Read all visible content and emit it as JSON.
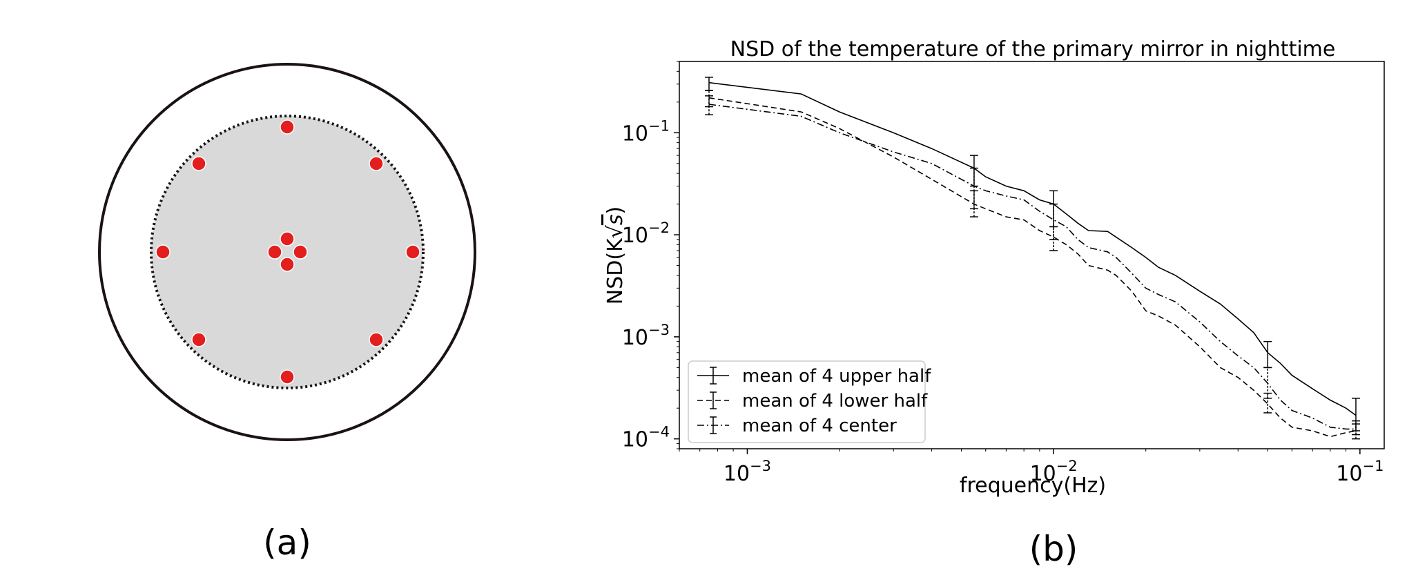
{
  "panels": {
    "a_label": "(a)",
    "b_label": "(b)"
  },
  "diagram": {
    "outer_color": "#1a1214",
    "disk_fill": "#d9d9d9",
    "sensor_color": "#e31e1e",
    "sensor_count": 12
  },
  "chart_data": {
    "type": "line",
    "title": "NSD of the temperature of the primary mirror in nighttime",
    "xlabel": "frequency(Hz)",
    "ylabel": "NSD(K√s)",
    "ylabel_main": "NSD(K",
    "ylabel_root": "s",
    "ylabel_close": ")",
    "x_scale": "log",
    "y_scale": "log",
    "xlim": [
      0.0006,
      0.12
    ],
    "ylim": [
      8e-05,
      0.5
    ],
    "x_ticks": [
      {
        "base": "10",
        "exp": "−3",
        "value": 0.001
      },
      {
        "base": "10",
        "exp": "−2",
        "value": 0.01
      },
      {
        "base": "10",
        "exp": "−1",
        "value": 0.1
      }
    ],
    "y_ticks": [
      {
        "base": "10",
        "exp": "−1",
        "value": 0.1
      },
      {
        "base": "10",
        "exp": "−2",
        "value": 0.01
      },
      {
        "base": "10",
        "exp": "−3",
        "value": 0.001
      },
      {
        "base": "10",
        "exp": "−4",
        "value": 0.0001
      }
    ],
    "legend_position": "lower-left",
    "grid": false,
    "series": [
      {
        "name": "mean of 4 upper half",
        "dash": "solid",
        "points": [
          [
            0.00075,
            0.31
          ],
          [
            0.0015,
            0.24
          ],
          [
            0.002,
            0.16
          ],
          [
            0.003,
            0.1
          ],
          [
            0.004,
            0.07
          ],
          [
            0.0055,
            0.045
          ],
          [
            0.006,
            0.037
          ],
          [
            0.007,
            0.03
          ],
          [
            0.008,
            0.027
          ],
          [
            0.009,
            0.022
          ],
          [
            0.01,
            0.02
          ],
          [
            0.011,
            0.016
          ],
          [
            0.012,
            0.013
          ],
          [
            0.013,
            0.011
          ],
          [
            0.015,
            0.0108
          ],
          [
            0.016,
            0.0095
          ],
          [
            0.018,
            0.0075
          ],
          [
            0.02,
            0.006
          ],
          [
            0.022,
            0.0048
          ],
          [
            0.025,
            0.004
          ],
          [
            0.03,
            0.0028
          ],
          [
            0.035,
            0.0021
          ],
          [
            0.04,
            0.0015
          ],
          [
            0.045,
            0.0011
          ],
          [
            0.05,
            0.0007
          ],
          [
            0.055,
            0.00055
          ],
          [
            0.06,
            0.00042
          ],
          [
            0.07,
            0.00031
          ],
          [
            0.08,
            0.00024
          ],
          [
            0.09,
            0.0002
          ],
          [
            0.097,
            0.00017
          ]
        ],
        "errorbars": [
          {
            "x": 0.00075,
            "y": 0.31,
            "lo": 0.26,
            "hi": 0.35
          },
          {
            "x": 0.0055,
            "y": 0.045,
            "lo": 0.03,
            "hi": 0.06
          },
          {
            "x": 0.01,
            "y": 0.02,
            "lo": 0.012,
            "hi": 0.027
          },
          {
            "x": 0.05,
            "y": 0.0007,
            "lo": 0.0005,
            "hi": 0.0009
          },
          {
            "x": 0.097,
            "y": 0.00017,
            "lo": 0.00012,
            "hi": 0.00025
          }
        ]
      },
      {
        "name": "mean of 4 lower half",
        "dash": "dashed",
        "points": [
          [
            0.00075,
            0.22
          ],
          [
            0.0015,
            0.16
          ],
          [
            0.002,
            0.11
          ],
          [
            0.003,
            0.058
          ],
          [
            0.004,
            0.035
          ],
          [
            0.0055,
            0.02
          ],
          [
            0.006,
            0.018
          ],
          [
            0.007,
            0.015
          ],
          [
            0.008,
            0.014
          ],
          [
            0.009,
            0.011
          ],
          [
            0.01,
            0.0095
          ],
          [
            0.011,
            0.008
          ],
          [
            0.012,
            0.0065
          ],
          [
            0.013,
            0.005
          ],
          [
            0.015,
            0.0045
          ],
          [
            0.016,
            0.004
          ],
          [
            0.018,
            0.0028
          ],
          [
            0.02,
            0.0018
          ],
          [
            0.022,
            0.0016
          ],
          [
            0.025,
            0.0013
          ],
          [
            0.03,
            0.0008
          ],
          [
            0.035,
            0.0005
          ],
          [
            0.04,
            0.0004
          ],
          [
            0.045,
            0.0003
          ],
          [
            0.05,
            0.00022
          ],
          [
            0.055,
            0.00016
          ],
          [
            0.06,
            0.00013
          ],
          [
            0.07,
            0.00012
          ],
          [
            0.08,
            0.000105
          ],
          [
            0.09,
            0.000115
          ],
          [
            0.097,
            0.00012
          ]
        ],
        "errorbars": [
          {
            "x": 0.00075,
            "y": 0.22,
            "lo": 0.18,
            "hi": 0.26
          },
          {
            "x": 0.0055,
            "y": 0.02,
            "lo": 0.015,
            "hi": 0.027
          },
          {
            "x": 0.01,
            "y": 0.0095,
            "lo": 0.007,
            "hi": 0.012
          },
          {
            "x": 0.05,
            "y": 0.00022,
            "lo": 0.00018,
            "hi": 0.00028
          },
          {
            "x": 0.097,
            "y": 0.00012,
            "lo": 0.0001,
            "hi": 0.00014
          }
        ]
      },
      {
        "name": "mean of 4 center",
        "dash": "dashdot",
        "points": [
          [
            0.00075,
            0.19
          ],
          [
            0.0015,
            0.145
          ],
          [
            0.002,
            0.1
          ],
          [
            0.003,
            0.065
          ],
          [
            0.004,
            0.05
          ],
          [
            0.0055,
            0.03
          ],
          [
            0.006,
            0.027
          ],
          [
            0.007,
            0.024
          ],
          [
            0.008,
            0.022
          ],
          [
            0.009,
            0.017
          ],
          [
            0.01,
            0.014
          ],
          [
            0.011,
            0.012
          ],
          [
            0.012,
            0.009
          ],
          [
            0.013,
            0.0075
          ],
          [
            0.015,
            0.0068
          ],
          [
            0.016,
            0.006
          ],
          [
            0.018,
            0.0042
          ],
          [
            0.02,
            0.003
          ],
          [
            0.022,
            0.0026
          ],
          [
            0.025,
            0.0022
          ],
          [
            0.03,
            0.0014
          ],
          [
            0.035,
            0.0009
          ],
          [
            0.04,
            0.00065
          ],
          [
            0.045,
            0.0005
          ],
          [
            0.05,
            0.00035
          ],
          [
            0.055,
            0.00024
          ],
          [
            0.06,
            0.00019
          ],
          [
            0.07,
            0.00016
          ],
          [
            0.08,
            0.00013
          ],
          [
            0.09,
            0.000125
          ],
          [
            0.097,
            0.000125
          ]
        ],
        "errorbars": [
          {
            "x": 0.00075,
            "y": 0.19,
            "lo": 0.15,
            "hi": 0.23
          },
          {
            "x": 0.0055,
            "y": 0.03,
            "lo": 0.018,
            "hi": 0.045
          },
          {
            "x": 0.01,
            "y": 0.014,
            "lo": 0.009,
            "hi": 0.02
          },
          {
            "x": 0.05,
            "y": 0.00035,
            "lo": 0.00025,
            "hi": 0.0005
          },
          {
            "x": 0.097,
            "y": 0.000125,
            "lo": 0.00011,
            "hi": 0.00015
          }
        ]
      }
    ]
  }
}
